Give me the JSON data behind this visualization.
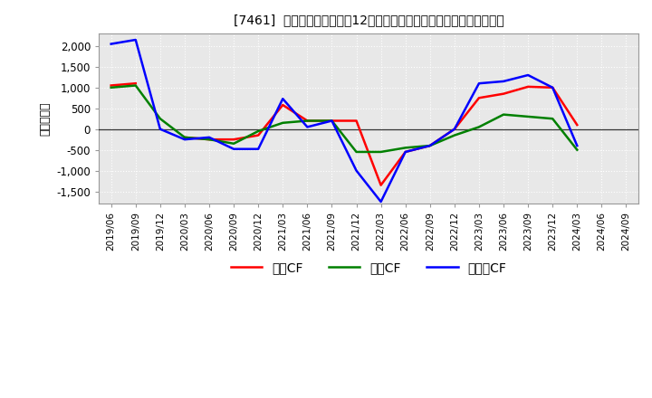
{
  "title": "[7461]  キャッシュフローの12か月移動合計の対前年同期増減額の推移",
  "ylabel": "（百万円）",
  "background_color": "#ffffff",
  "plot_bg_color": "#e8e8e8",
  "grid_color": "#ffffff",
  "x_labels": [
    "2019/06",
    "2019/09",
    "2019/12",
    "2020/03",
    "2020/06",
    "2020/09",
    "2020/12",
    "2021/03",
    "2021/06",
    "2021/09",
    "2021/12",
    "2022/03",
    "2022/06",
    "2022/09",
    "2022/12",
    "2023/03",
    "2023/06",
    "2023/09",
    "2023/12",
    "2024/03",
    "2024/06",
    "2024/09"
  ],
  "operating_cf": [
    1050,
    1100,
    null,
    -200,
    -250,
    -250,
    -150,
    580,
    200,
    200,
    200,
    -1350,
    -550,
    -400,
    0,
    750,
    850,
    1020,
    1000,
    100,
    null,
    null
  ],
  "investing_cf": [
    1000,
    1050,
    250,
    -200,
    -250,
    -350,
    -50,
    150,
    200,
    200,
    -550,
    -550,
    -450,
    -400,
    -150,
    50,
    350,
    300,
    250,
    -500,
    null,
    null
  ],
  "free_cf": [
    2050,
    2150,
    0,
    -250,
    -200,
    -480,
    -480,
    730,
    50,
    200,
    -1000,
    -1750,
    -550,
    -400,
    0,
    1100,
    1150,
    1300,
    1000,
    -400,
    null,
    null
  ],
  "operating_color": "#ff0000",
  "investing_color": "#008000",
  "free_color": "#0000ff",
  "ylim": [
    -1800,
    2300
  ],
  "yticks": [
    -1500,
    -1000,
    -500,
    0,
    500,
    1000,
    1500,
    2000
  ],
  "legend_labels": [
    "営業CF",
    "投資CF",
    "フリーCF"
  ]
}
